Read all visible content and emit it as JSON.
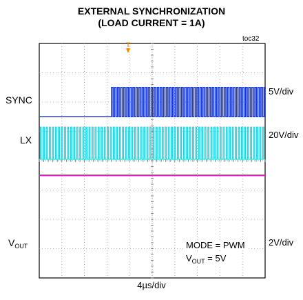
{
  "chart_data": {
    "type": "line",
    "title": "EXTERNAL SYNCHRONIZATION",
    "subtitle": "(LOAD CURRENT  = 1A)",
    "figure_tag": "toc32",
    "xlabel": "4µs/div",
    "grid": true,
    "divisions": {
      "x": 10,
      "y": 8
    },
    "series": [
      {
        "name": "SYNC",
        "scale": "5V/div",
        "color": "#1a3acc",
        "sync_start_div": 3.2,
        "period_div": 0.135,
        "high_level_div": 1.0
      },
      {
        "name": "LX",
        "scale": "20V/div",
        "color": "#22d6e0",
        "period_div": 0.135,
        "high_level_div": 0.55
      },
      {
        "name_main": "V",
        "name_sub": "OUT",
        "scale": "2V/div",
        "color": "#e020c0",
        "level": "flat"
      }
    ],
    "annotation": {
      "line1": "MODE = PWM",
      "line2_main": "V",
      "line2_sub": "OUT",
      "line2_rest": " = 5V"
    },
    "trigger_marker": "T"
  }
}
